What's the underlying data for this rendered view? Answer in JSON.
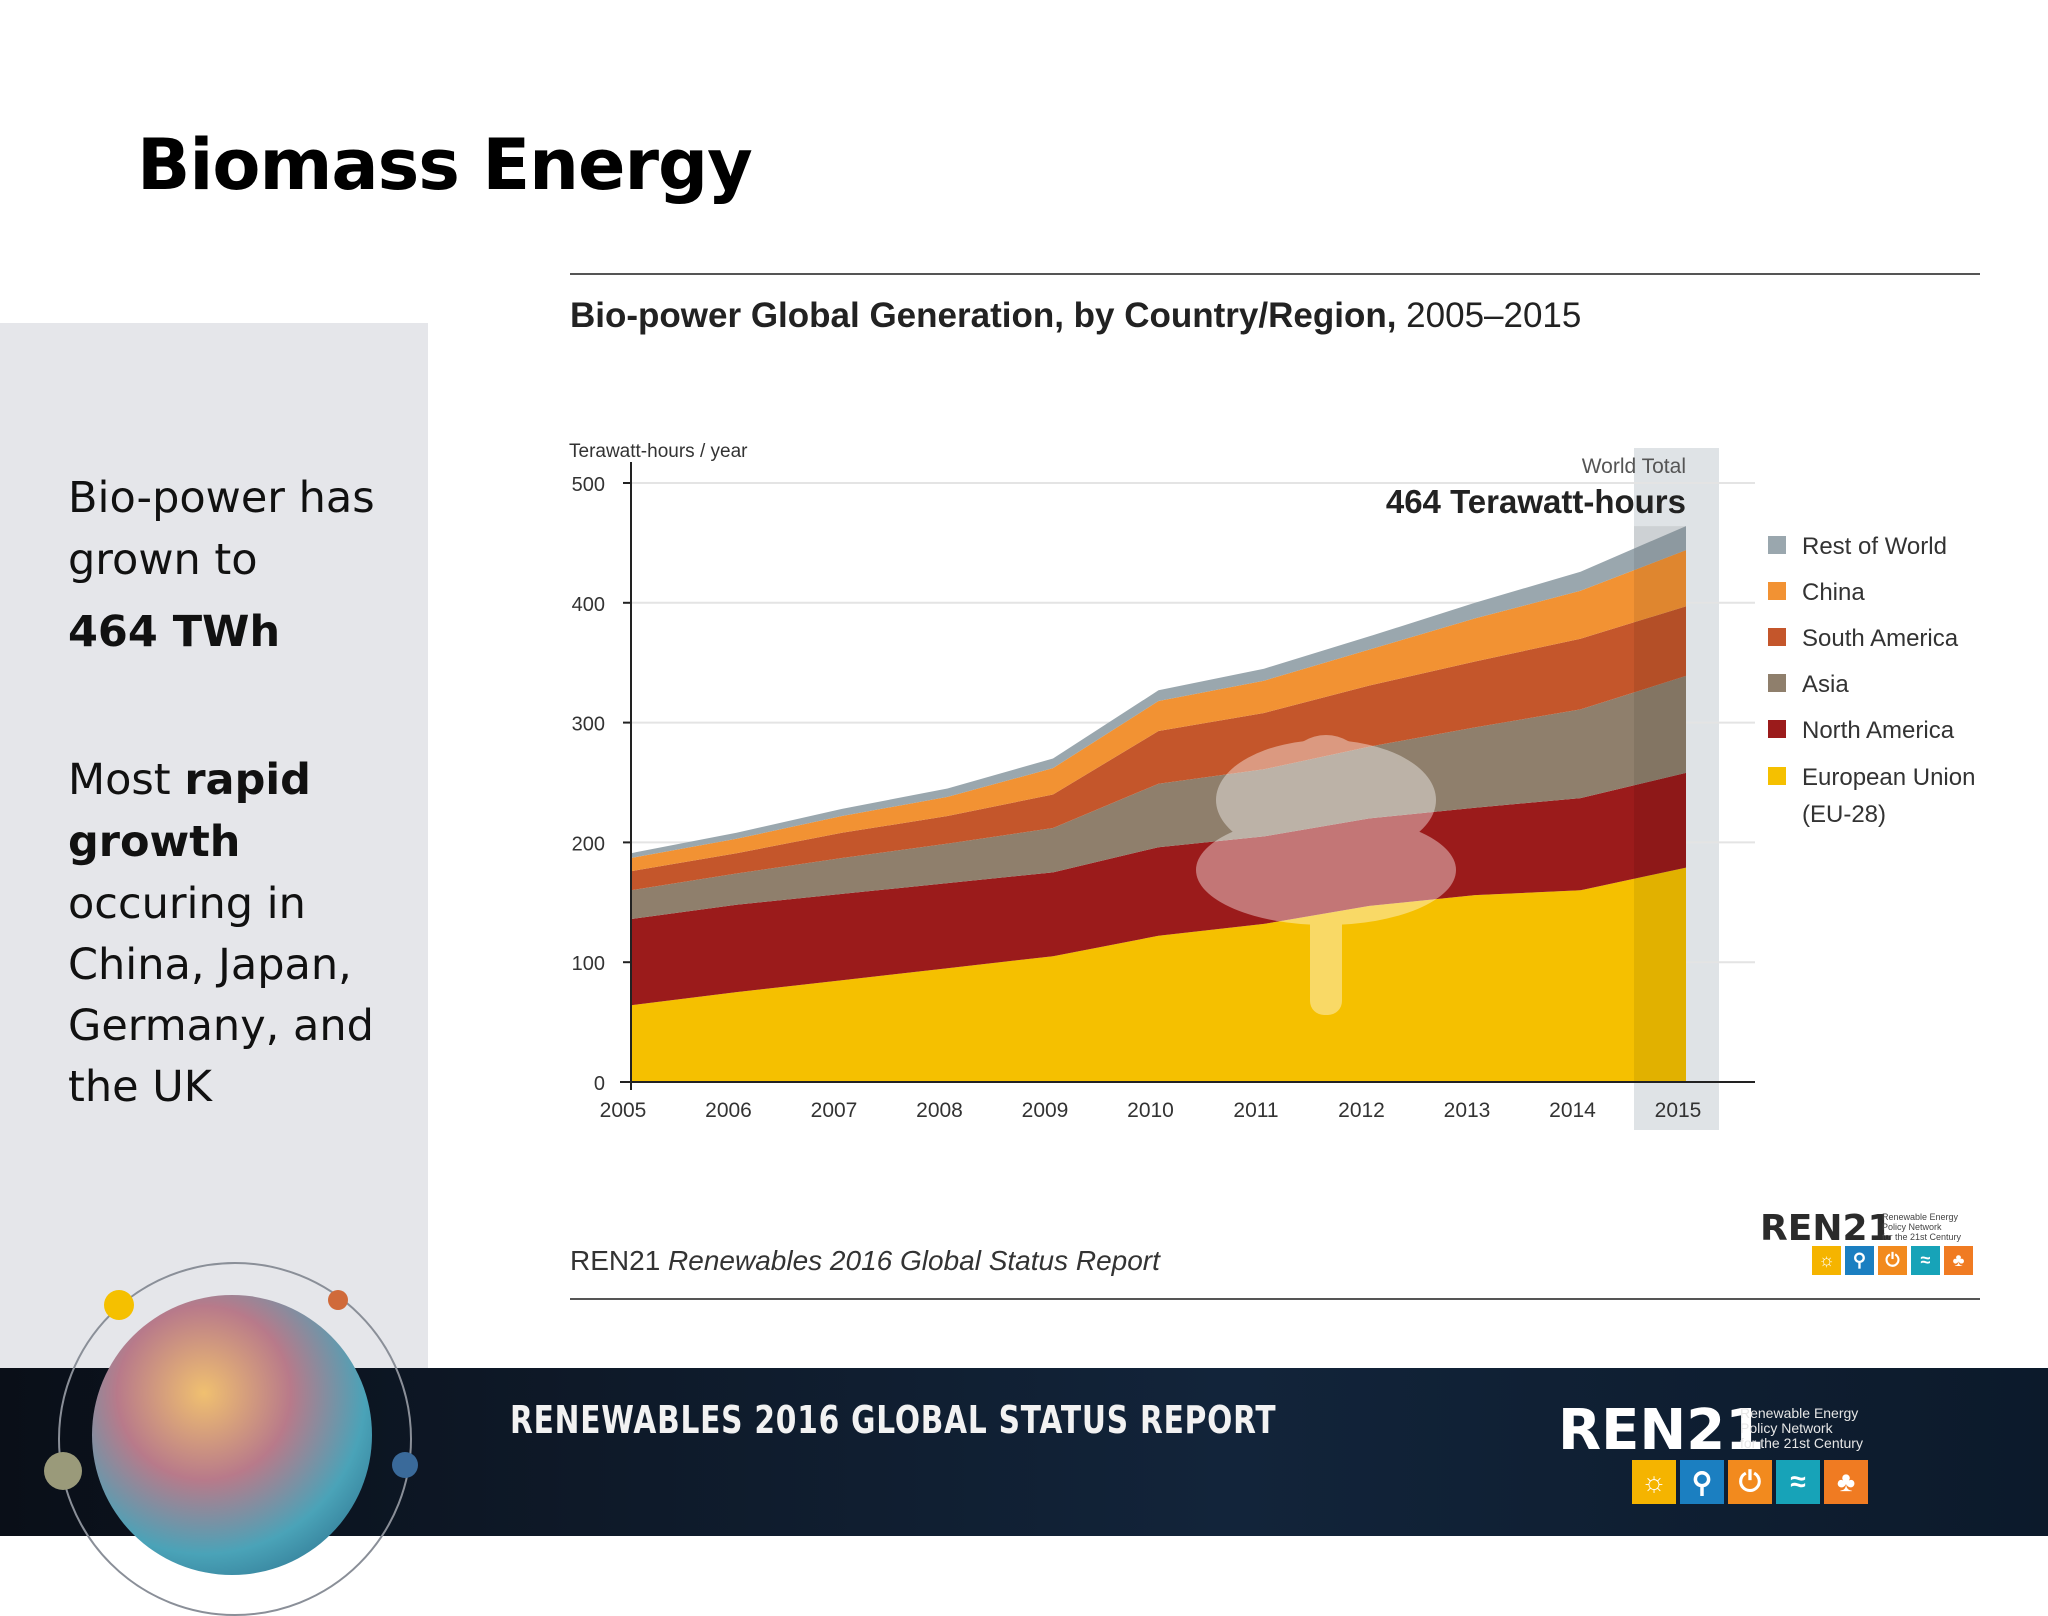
{
  "slide": {
    "title": "Biomass Energy",
    "side": {
      "line1": "Bio-power has",
      "line2": "grown to",
      "line3": "464 TWh",
      "p2_pre": "Most ",
      "p2_bold1": "rapid",
      "p2_bold2": "growth",
      "p2_l3": "occuring in",
      "p2_l4": "China, Japan,",
      "p2_l5": "Germany, and",
      "p2_l6": "the UK"
    },
    "footer_title": "RENEWABLES 2016 GLOBAL STATUS REPORT",
    "footer_logo": "REN21",
    "footer_logo_sub": [
      "Renewable Energy",
      "Policy Network",
      "for the 21st Century"
    ]
  },
  "chart_title": {
    "bold": "Bio-power Global Generation, by Country/Region,",
    "light": "2005–2015"
  },
  "source": {
    "org": "REN21",
    "report": "Renewables 2016 Global Status Report"
  },
  "report_logo": "REN21",
  "report_logo_sub": [
    "Renewable Energy",
    "Policy Network",
    "for the 21st Century"
  ],
  "colors": {
    "eu": "#f5c000",
    "north_america": "#9b1b1b",
    "asia": "#8f7f6c",
    "south_america": "#c4562b",
    "china": "#f29233",
    "rest_of_world": "#9aa7ae",
    "highlight": "#dfe3e6"
  },
  "chart_data": {
    "type": "area",
    "stacked": true,
    "ylabel": "Terawatt-hours / year",
    "ylim": [
      0,
      500
    ],
    "yticks": [
      0,
      100,
      200,
      300,
      400,
      500
    ],
    "x": [
      "2005",
      "2006",
      "2007",
      "2008",
      "2009",
      "2010",
      "2011",
      "2012",
      "2013",
      "2014",
      "2015"
    ],
    "series": [
      {
        "name": "European Union (EU-28)",
        "values": [
          64,
          75,
          85,
          95,
          105,
          122,
          132,
          147,
          156,
          160,
          179
        ]
      },
      {
        "name": "North America",
        "values": [
          72,
          73,
          72,
          71,
          70,
          74,
          73,
          73,
          73,
          77,
          79
        ]
      },
      {
        "name": "Asia",
        "values": [
          24,
          26,
          30,
          33,
          37,
          53,
          56,
          60,
          67,
          74,
          81
        ]
      },
      {
        "name": "South America",
        "values": [
          16,
          17,
          21,
          23,
          28,
          44,
          47,
          51,
          55,
          59,
          58
        ]
      },
      {
        "name": "China",
        "values": [
          11,
          12,
          14,
          16,
          22,
          25,
          27,
          30,
          36,
          40,
          47
        ]
      },
      {
        "name": "Rest of World",
        "values": [
          4,
          5,
          6,
          7,
          8,
          9,
          10,
          11,
          13,
          16,
          20
        ]
      }
    ],
    "annotation_label": "World Total",
    "annotation_value": "464 Terawatt-hours",
    "highlight": "2015",
    "legend_position": "right",
    "legend": [
      "Rest of World",
      "China",
      "South America",
      "Asia",
      "North America",
      "European Union",
      "(EU-28)"
    ]
  }
}
